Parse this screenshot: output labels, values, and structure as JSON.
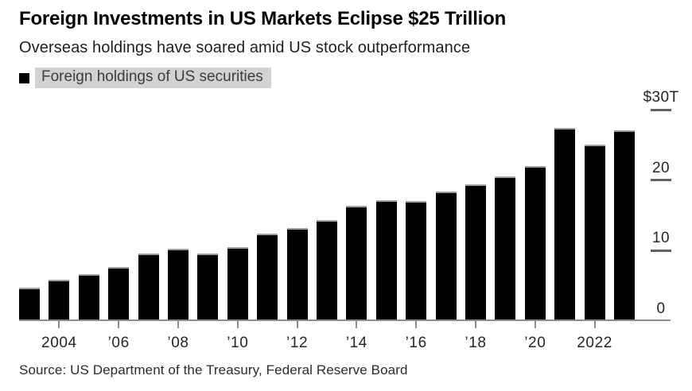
{
  "chart_data": {
    "type": "bar",
    "title": "Foreign Investments in US Markets Eclipse $25 Trillion",
    "subtitle": "Overseas holdings have soared amid US stock outperformance",
    "legend_label": "Foreign holdings of US securities",
    "legend_position": "top-left",
    "unit": "trillions of US dollars",
    "categories": [
      2003,
      2004,
      2005,
      2006,
      2007,
      2008,
      2009,
      2010,
      2011,
      2012,
      2013,
      2014,
      2015,
      2016,
      2017,
      2018,
      2019,
      2020,
      2021,
      2022,
      2023
    ],
    "values": [
      4.7,
      5.8,
      6.6,
      7.6,
      9.6,
      10.2,
      9.5,
      10.5,
      12.4,
      13.2,
      14.3,
      16.3,
      17.1,
      17.0,
      18.4,
      19.4,
      20.5,
      22.0,
      27.4,
      25.0,
      27.1
    ],
    "ylim": [
      0,
      30
    ],
    "yticks": [
      {
        "value": 0,
        "label": "0"
      },
      {
        "value": 10,
        "label": "10"
      },
      {
        "value": 20,
        "label": "20"
      },
      {
        "value": 30,
        "label": "$30T"
      }
    ],
    "xticks": [
      {
        "year": 2004,
        "label": "2004"
      },
      {
        "year": 2006,
        "label": "’06"
      },
      {
        "year": 2008,
        "label": "’08"
      },
      {
        "year": 2010,
        "label": "’10"
      },
      {
        "year": 2012,
        "label": "’12"
      },
      {
        "year": 2014,
        "label": "’14"
      },
      {
        "year": 2016,
        "label": "’16"
      },
      {
        "year": 2018,
        "label": "’18"
      },
      {
        "year": 2020,
        "label": "’20"
      },
      {
        "year": 2022,
        "label": "2022"
      }
    ],
    "grid": "off (short right-side tick dashes only)",
    "axis_side": "right",
    "colors": {
      "bar": "#000000",
      "bar_top_edge": "#9f9f9f",
      "axis": "#8c8c8c",
      "y_dash": "#636363",
      "legend_highlight": "#d2d2d2"
    },
    "source": "Source: US Department of the Treasury, Federal Reserve Board"
  }
}
